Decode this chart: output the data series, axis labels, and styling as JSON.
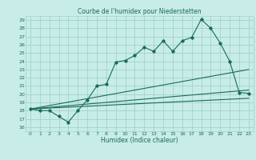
{
  "title": "Courbe de l'humidex pour Niederstetten",
  "xlabel": "Humidex (Indice chaleur)",
  "bg_color": "#c8ece8",
  "grid_color": "#a0d4cc",
  "line_color": "#1a6b5a",
  "x_ticks": [
    0,
    1,
    2,
    3,
    4,
    5,
    6,
    7,
    8,
    9,
    10,
    11,
    12,
    13,
    14,
    15,
    16,
    17,
    18,
    19,
    20,
    21,
    22,
    23
  ],
  "y_ticks": [
    16,
    17,
    18,
    19,
    20,
    21,
    22,
    23,
    24,
    25,
    26,
    27,
    28,
    29
  ],
  "ylim": [
    15.5,
    29.5
  ],
  "xlim": [
    -0.5,
    23.5
  ],
  "line1_x": [
    0,
    1,
    2,
    3,
    4,
    5,
    6,
    7,
    8,
    9,
    10,
    11,
    12,
    13,
    14,
    15,
    16,
    17,
    18,
    19,
    20,
    21,
    22,
    23
  ],
  "line1_y": [
    18.2,
    18.0,
    18.0,
    17.3,
    16.6,
    18.0,
    19.3,
    21.0,
    21.2,
    23.9,
    24.1,
    24.7,
    25.7,
    25.2,
    26.5,
    25.2,
    26.5,
    26.9,
    29.1,
    28.0,
    26.2,
    24.0,
    20.2,
    20.1
  ],
  "line2_x": [
    0,
    23
  ],
  "line2_y": [
    18.2,
    23.0
  ],
  "line3_x": [
    0,
    23
  ],
  "line3_y": [
    18.2,
    20.5
  ],
  "line4_x": [
    0,
    23
  ],
  "line4_y": [
    18.2,
    19.5
  ]
}
